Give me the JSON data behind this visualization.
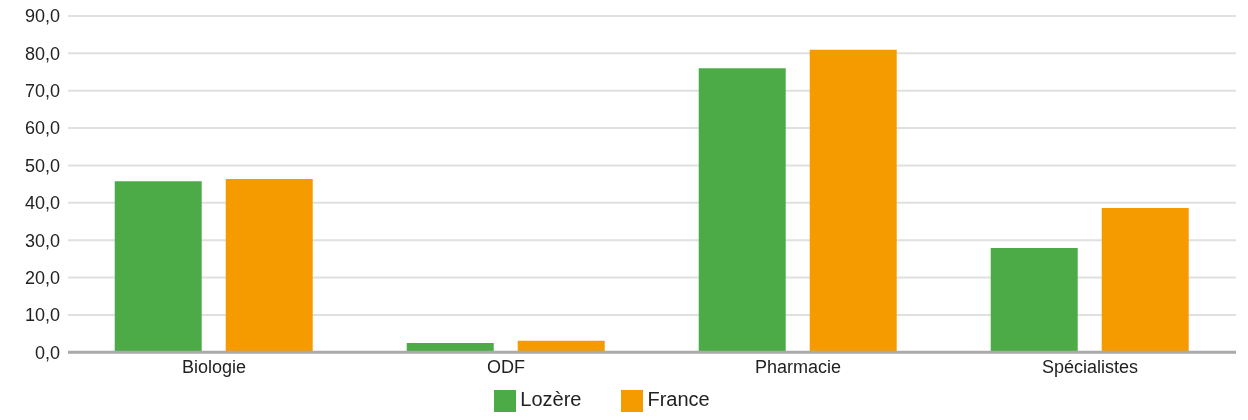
{
  "chart_data": {
    "type": "bar",
    "categories": [
      "Biologie",
      "ODF",
      "Pharmacie",
      "Spécialistes"
    ],
    "series": [
      {
        "name": "Lozère",
        "color": "#4caa47",
        "values": [
          45.8,
          2.5,
          76.0,
          27.9
        ]
      },
      {
        "name": "France",
        "color": "#f59b00",
        "values": [
          46.4,
          3.1,
          81.0,
          38.6
        ]
      }
    ],
    "ylim": [
      0,
      90
    ],
    "yticks": [
      {
        "value": 0,
        "label": "0,0"
      },
      {
        "value": 10,
        "label": "10,0"
      },
      {
        "value": 20,
        "label": "20,0"
      },
      {
        "value": 30,
        "label": "30,0"
      },
      {
        "value": 40,
        "label": "40,0"
      },
      {
        "value": 50,
        "label": "50,0"
      },
      {
        "value": 60,
        "label": "60,0"
      },
      {
        "value": 70,
        "label": "70,0"
      },
      {
        "value": 80,
        "label": "80,0"
      },
      {
        "value": 90,
        "label": "90,0"
      }
    ],
    "grid": "y",
    "legend": "bottom"
  }
}
